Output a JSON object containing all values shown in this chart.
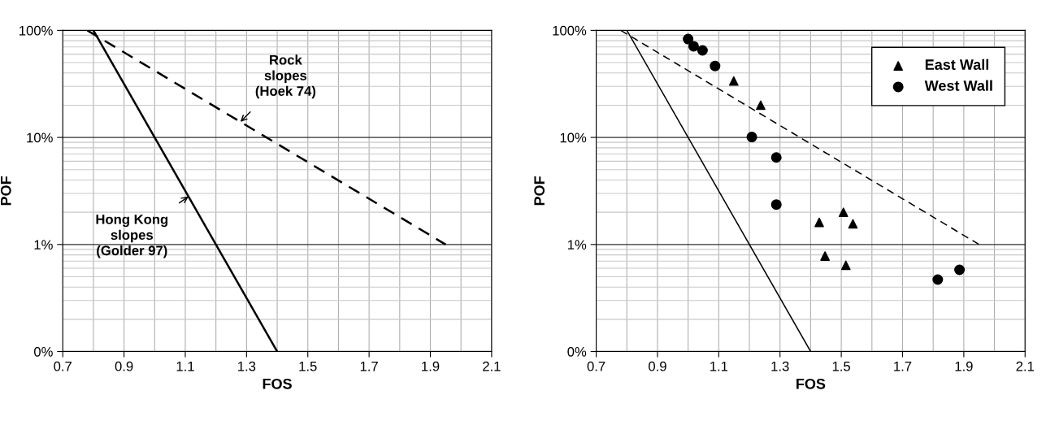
{
  "chart_data": [
    {
      "type": "line",
      "xlabel": "FOS",
      "ylabel": "POF",
      "log": "y",
      "grid": true,
      "marker": "none",
      "xlim": [
        0.7,
        2.1
      ],
      "xticks": [
        0.7,
        0.9,
        1.1,
        1.3,
        1.5,
        1.7,
        1.9,
        2.1
      ],
      "ylim": [
        0.1,
        100
      ],
      "yticks": [
        {
          "value": 0.1,
          "label": "0%"
        },
        {
          "value": 1,
          "label": "1%"
        },
        {
          "value": 10,
          "label": "10%"
        },
        {
          "value": 100,
          "label": "100%"
        }
      ],
      "series": [
        {
          "color": "#000000",
          "line_style": "solid",
          "x": [
            0.8,
            1.4
          ],
          "values": [
            100,
            0.1
          ]
        },
        {
          "color": "#000000",
          "line_style": "dashed",
          "x": [
            0.78,
            1.95
          ],
          "values": [
            100,
            1
          ]
        }
      ],
      "annotations": [
        {
          "text": "Rock\nslopes\n(Hoek 74)",
          "x": 1.28,
          "y": 14
        },
        {
          "text": "Hong Kong\nslopes\n(Golder 97)",
          "x": 1.11,
          "y": 2.8
        }
      ]
    },
    {
      "type": "scatter",
      "xlabel": "FOS",
      "ylabel": "POF",
      "log": "y",
      "grid": true,
      "legend": "top right",
      "xlim": [
        0.7,
        2.1
      ],
      "xticks": [
        0.7,
        0.9,
        1.1,
        1.3,
        1.5,
        1.7,
        1.9,
        2.1
      ],
      "ylim": [
        0.1,
        100
      ],
      "yticks": [
        {
          "value": 0.1,
          "label": "0%"
        },
        {
          "value": 1,
          "label": "1%"
        },
        {
          "value": 10,
          "label": "10%"
        },
        {
          "value": 100,
          "label": "100%"
        }
      ],
      "series": [
        {
          "type": "line",
          "color": "#000000",
          "line_style": "solid",
          "marker": "none",
          "x": [
            0.8,
            1.4
          ],
          "values": [
            100,
            0.1
          ]
        },
        {
          "type": "line",
          "color": "#000000",
          "line_style": "dashed",
          "marker": "none",
          "x": [
            0.78,
            1.95
          ],
          "values": [
            100,
            1
          ]
        },
        {
          "name": "East Wall",
          "color": "#000000",
          "marker": "triangle",
          "x": [
            1.149,
            1.237,
            1.428,
            1.507,
            1.538,
            1.447,
            1.515
          ],
          "values": [
            33.6,
            20,
            1.61,
            2.0,
            1.56,
            0.78,
            0.64
          ]
        },
        {
          "name": "West Wall",
          "color": "#000000",
          "marker": "circle",
          "x": [
            1.0,
            1.018,
            1.047,
            1.088,
            1.208,
            1.288,
            1.288,
            1.815,
            1.886
          ],
          "values": [
            83,
            71,
            65,
            46.5,
            10.1,
            6.5,
            2.36,
            0.47,
            0.58
          ]
        }
      ]
    }
  ]
}
